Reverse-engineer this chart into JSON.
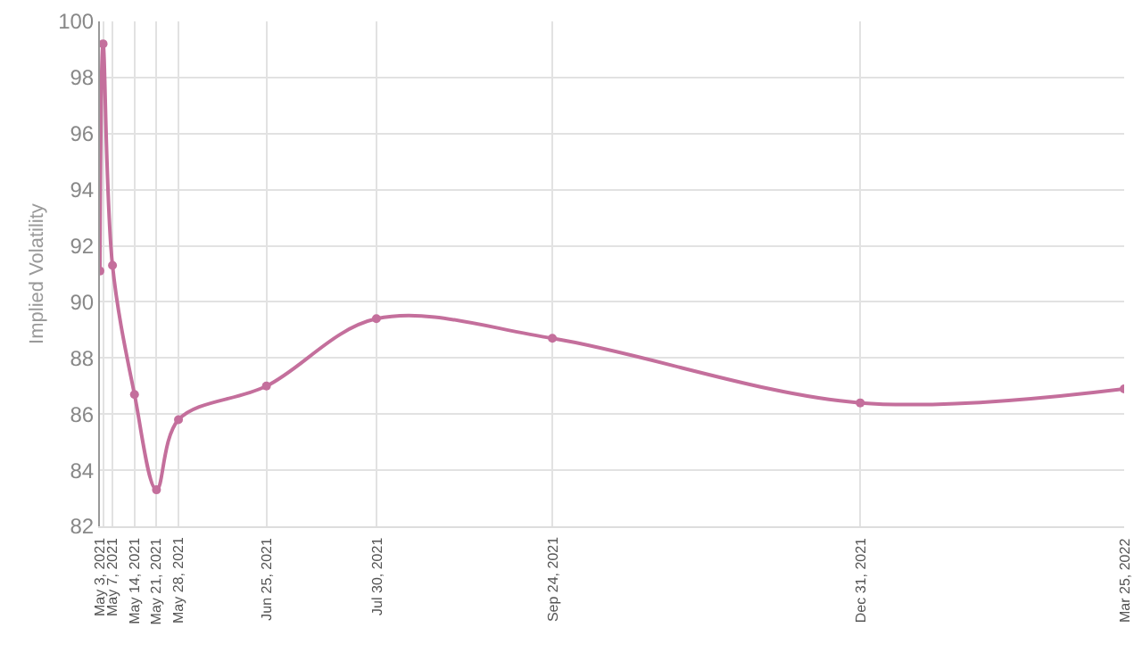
{
  "chart_data": {
    "type": "line",
    "ylabel": "Implied Volatility",
    "x": [
      "2021-05-03",
      "2021-05-04",
      "2021-05-07",
      "2021-05-14",
      "2021-05-21",
      "2021-05-28",
      "2021-06-25",
      "2021-07-30",
      "2021-09-24",
      "2021-12-31",
      "2022-03-25"
    ],
    "series": [
      {
        "color": "#c46f9c",
        "values": [
          91.1,
          99.2,
          91.3,
          86.7,
          83.3,
          85.8,
          87.0,
          89.4,
          88.7,
          86.4,
          86.9
        ]
      }
    ],
    "xlim": [
      "2021-05-03",
      "2022-03-25"
    ],
    "xticks": [
      {
        "value": "2021-05-03",
        "label": "May 3, 2021"
      },
      {
        "value": "2021-05-04",
        "label": null
      },
      {
        "value": "2021-05-07",
        "label": "May 7, 2021"
      },
      {
        "value": "2021-05-14",
        "label": "May 14, 2021"
      },
      {
        "value": "2021-05-21",
        "label": "May 21, 2021"
      },
      {
        "value": "2021-05-28",
        "label": "May 28, 2021"
      },
      {
        "value": "2021-06-25",
        "label": "Jun 25, 2021"
      },
      {
        "value": "2021-07-30",
        "label": "Jul 30, 2021"
      },
      {
        "value": "2021-09-24",
        "label": "Sep 24, 2021"
      },
      {
        "value": "2021-12-31",
        "label": "Dec 31, 2021"
      },
      {
        "value": "2022-03-25",
        "label": "Mar 25, 2022"
      }
    ],
    "ylim": [
      82,
      100
    ],
    "yticks": [
      82,
      84,
      86,
      88,
      90,
      92,
      94,
      96,
      98,
      100
    ],
    "grid": true,
    "marker": "circle",
    "line_style": "solid"
  }
}
